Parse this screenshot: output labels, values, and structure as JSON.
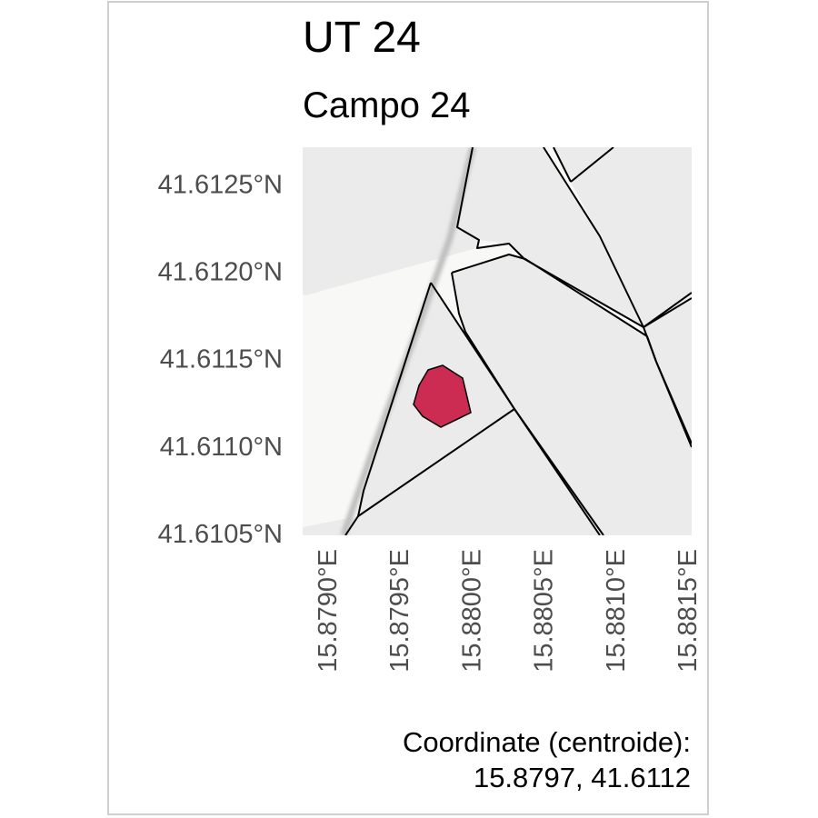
{
  "header": {
    "title": "UT 24",
    "subtitle": "Campo 24"
  },
  "map": {
    "feature_color": "#cc2b52",
    "parcel_fill": "#ebebeb",
    "background_fill": "#f8f8f6",
    "boundary_color": "#000000",
    "x_ticks": [
      {
        "value": 15.879,
        "label": "15.8790°E"
      },
      {
        "value": 15.8795,
        "label": "15.8795°E"
      },
      {
        "value": 15.88,
        "label": "15.8800°E"
      },
      {
        "value": 15.8805,
        "label": "15.8805°E"
      },
      {
        "value": 15.881,
        "label": "15.8810°E"
      },
      {
        "value": 15.8815,
        "label": "15.8815°E"
      }
    ],
    "y_ticks": [
      {
        "value": 41.6125,
        "label": "41.6125°N"
      },
      {
        "value": 41.612,
        "label": "41.6120°N"
      },
      {
        "value": 41.6115,
        "label": "41.6115°N"
      },
      {
        "value": 41.611,
        "label": "41.6110°N"
      },
      {
        "value": 41.6105,
        "label": "41.6105°N"
      }
    ],
    "xlim": [
      15.87883,
      15.88153
    ],
    "ylim": [
      41.61049,
      41.61271
    ]
  },
  "footer": {
    "caption_line1": "Coordinate (centroide):",
    "caption_line2": "15.8797, 41.6112"
  }
}
